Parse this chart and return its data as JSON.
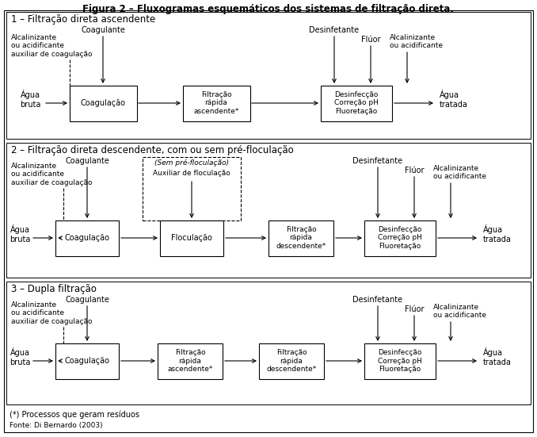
{
  "title": "Figura 2 – Fluxogramas esquemáticos dos sistemas de filtração direta.",
  "section_titles": [
    "1 – Filtração direta ascendente",
    "2 – Filtração direta descendente, com ou sem pré-floculação",
    "3 – Dupla filtração"
  ],
  "footer": "(*) Processos que geram resíduos",
  "source": "Fonte: Di Bernardo (2003)",
  "bg_color": "#ffffff",
  "box_color": "#ffffff",
  "box_edge_color": "#000000"
}
